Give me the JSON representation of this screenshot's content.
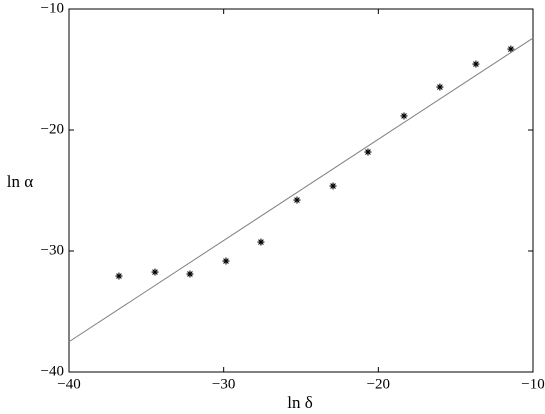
{
  "chart_data": {
    "type": "scatter",
    "xlabel": "ln δ",
    "ylabel": "ln α",
    "xlim": [
      -40,
      -10
    ],
    "ylim": [
      -40,
      -10
    ],
    "xticks": [
      {
        "value": -40,
        "label": "−40"
      },
      {
        "value": -30,
        "label": "−30"
      },
      {
        "value": -20,
        "label": "−20"
      },
      {
        "value": -10,
        "label": "−10"
      }
    ],
    "yticks": [
      {
        "value": -40,
        "label": "−40"
      },
      {
        "value": -30,
        "label": "−30"
      },
      {
        "value": -20,
        "label": "−20"
      },
      {
        "value": -10,
        "label": "−10"
      }
    ],
    "grid": false,
    "series": [
      {
        "type": "scatter",
        "color": "#000000",
        "x": [
          -36.77,
          -34.44,
          -32.18,
          -29.85,
          -27.59,
          -25.26,
          -22.93,
          -20.67,
          -18.34,
          -16.02,
          -13.69,
          -11.43
        ],
        "values": [
          -32.07,
          -31.74,
          -31.9,
          -30.83,
          -29.26,
          -25.79,
          -24.63,
          -21.82,
          -18.84,
          -16.45,
          -14.55,
          -13.31
        ]
      },
      {
        "type": "line",
        "color": "#808080",
        "x": [
          -40,
          -10
        ],
        "values": [
          -37.5,
          -12.4
        ]
      }
    ]
  }
}
